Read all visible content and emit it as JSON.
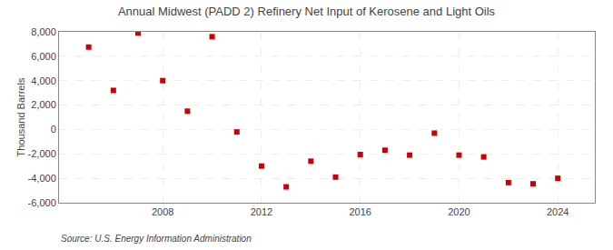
{
  "chart_data": {
    "type": "scatter",
    "title": "Annual Midwest (PADD 2) Refinery Net Input of Kerosene and Light Oils",
    "ylabel": "Thousand Barrels",
    "annotations": [
      "Source: U.S. Energy Information Administration"
    ],
    "x": [
      2005,
      2006,
      2007,
      2008,
      2009,
      2010,
      2011,
      2012,
      2013,
      2014,
      2015,
      2016,
      2017,
      2018,
      2019,
      2020,
      2021,
      2022,
      2023,
      2024
    ],
    "values": [
      6750,
      3200,
      7900,
      4000,
      1500,
      7600,
      -200,
      -3000,
      -4700,
      -2600,
      -3900,
      -2050,
      -1700,
      -2100,
      -300,
      -2100,
      -2250,
      -4350,
      -4450,
      -4000
    ],
    "color": "#cc0000",
    "marker": "square",
    "xlim": [
      2003.8,
      2025.5
    ],
    "xticks": [
      2008,
      2012,
      2016,
      2020,
      2024
    ],
    "ylim": [
      -6000,
      8000
    ],
    "yticks": [
      {
        "value": -6000,
        "label": "-6,000"
      },
      {
        "value": -4000,
        "label": "-4,000"
      },
      {
        "value": -2000,
        "label": "-2,000"
      },
      0,
      {
        "value": 2000,
        "label": "2,000"
      },
      {
        "value": 4000,
        "label": "4,000"
      },
      {
        "value": 6000,
        "label": "6,000"
      },
      {
        "value": 8000,
        "label": "8,000"
      }
    ],
    "grid": true
  }
}
